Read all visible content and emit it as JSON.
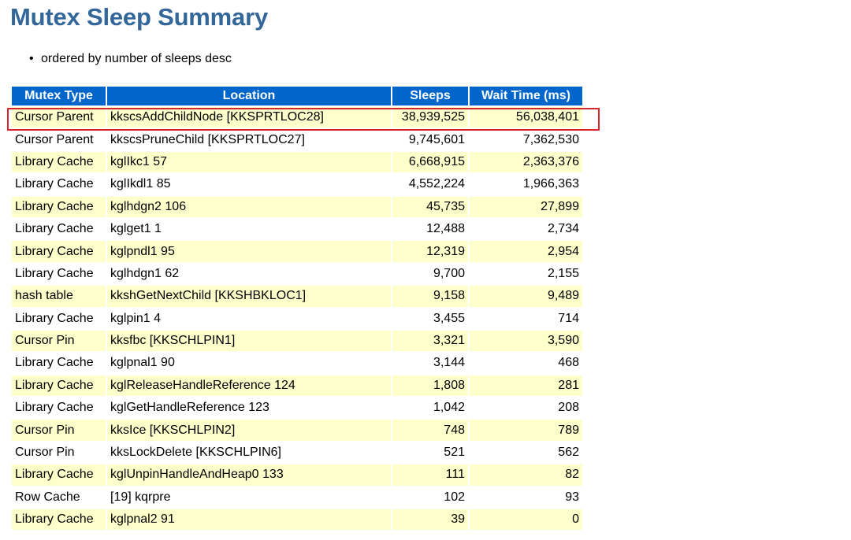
{
  "title": "Mutex Sleep Summary",
  "notes": [
    "ordered by number of sleeps desc"
  ],
  "table": {
    "headers": [
      "Mutex Type",
      "Location",
      "Sleeps",
      "Wait Time (ms)"
    ],
    "rows": [
      [
        "Cursor Parent",
        "kkscsAddChildNode [KKSPRTLOC28]",
        "38,939,525",
        "56,038,401"
      ],
      [
        "Cursor Parent",
        "kkscsPruneChild [KKSPRTLOC27]",
        "9,745,601",
        "7,362,530"
      ],
      [
        "Library Cache",
        "kglIkc1 57",
        "6,668,915",
        "2,363,376"
      ],
      [
        "Library Cache",
        "kglIkdl1 85",
        "4,552,224",
        "1,966,363"
      ],
      [
        "Library Cache",
        "kglhdgn2 106",
        "45,735",
        "27,899"
      ],
      [
        "Library Cache",
        "kglget1 1",
        "12,488",
        "2,734"
      ],
      [
        "Library Cache",
        "kglpndl1 95",
        "12,319",
        "2,954"
      ],
      [
        "Library Cache",
        "kglhdgn1 62",
        "9,700",
        "2,155"
      ],
      [
        "hash table",
        "kkshGetNextChild [KKSHBKLOC1]",
        "9,158",
        "9,489"
      ],
      [
        "Library Cache",
        "kglpin1 4",
        "3,455",
        "714"
      ],
      [
        "Cursor Pin",
        "kksfbc [KKSCHLPIN1]",
        "3,321",
        "3,590"
      ],
      [
        "Library Cache",
        "kglpnal1 90",
        "3,144",
        "468"
      ],
      [
        "Library Cache",
        "kglReleaseHandleReference 124",
        "1,808",
        "281"
      ],
      [
        "Library Cache",
        "kglGetHandleReference 123",
        "1,042",
        "208"
      ],
      [
        "Cursor Pin",
        "kksIce [KKSCHLPIN2]",
        "748",
        "789"
      ],
      [
        "Cursor Pin",
        "kksLockDelete [KKSCHLPIN6]",
        "521",
        "562"
      ],
      [
        "Library Cache",
        "kglUnpinHandleAndHeap0 133",
        "111",
        "82"
      ],
      [
        "Row Cache",
        "[19] kqrpre",
        "102",
        "93"
      ],
      [
        "Library Cache",
        "kglpnal2 91",
        "39",
        "0"
      ]
    ],
    "highlighted_row": 0
  },
  "colors": {
    "title": "#336699",
    "header_bg": "#0066cc",
    "header_text": "#ffffff",
    "row_alt_bg": "#ffffcc",
    "highlight_border": "#d9262c"
  }
}
